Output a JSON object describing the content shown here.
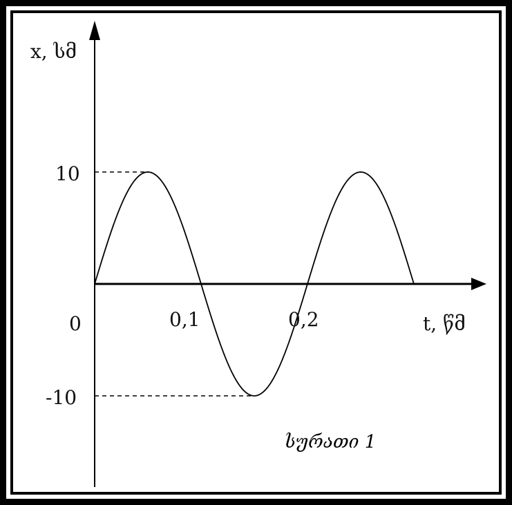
{
  "chart_data": {
    "type": "line",
    "xlabel": "t, წმ",
    "ylabel": "x, სმ",
    "origin_label": "0",
    "x_ticks": [
      {
        "value": 0.1,
        "label": "0,1"
      },
      {
        "value": 0.2,
        "label": "0,2"
      }
    ],
    "y_ticks": [
      {
        "value": 10,
        "label": "10"
      },
      {
        "value": -10,
        "label": "-10"
      }
    ],
    "amplitude": 10,
    "period": 0.2,
    "series": [
      {
        "x": [
          0,
          0.025,
          0.05,
          0.075,
          0.1,
          0.125,
          0.15,
          0.175,
          0.2,
          0.225,
          0.25,
          0.275,
          0.3
        ],
        "y": [
          0,
          7.1,
          10,
          7.1,
          0,
          -7.1,
          -10,
          -7.1,
          0,
          7.1,
          10,
          7.1,
          0
        ]
      }
    ],
    "dashed_guides": [
      {
        "y": 10,
        "x_end": 0.05
      },
      {
        "y": -10,
        "x_end": 0.15
      }
    ],
    "caption": "სურათი 1"
  }
}
